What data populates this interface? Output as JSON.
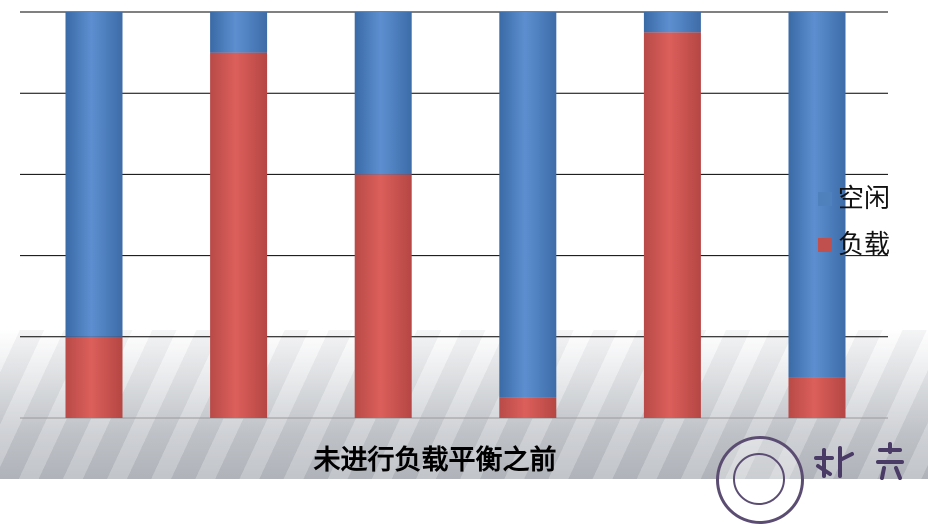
{
  "caption": "未进行负载平衡之前",
  "legend": [
    {
      "label": "空闲",
      "color": "#4f81bd"
    },
    {
      "label": "负载",
      "color": "#c0504d"
    }
  ],
  "chart_data": {
    "type": "bar",
    "stacked": true,
    "percent_stacked": true,
    "categories": [
      "",
      "",
      "",
      "",
      "",
      ""
    ],
    "ylim": [
      0,
      100
    ],
    "grid": true,
    "legend_position": "right",
    "series": [
      {
        "name": "负载",
        "color": "#c0504d",
        "values": [
          20,
          90,
          60,
          5,
          95,
          10
        ]
      },
      {
        "name": "空闲",
        "color": "#4f81bd",
        "values": [
          80,
          10,
          40,
          95,
          5,
          90
        ]
      }
    ]
  }
}
